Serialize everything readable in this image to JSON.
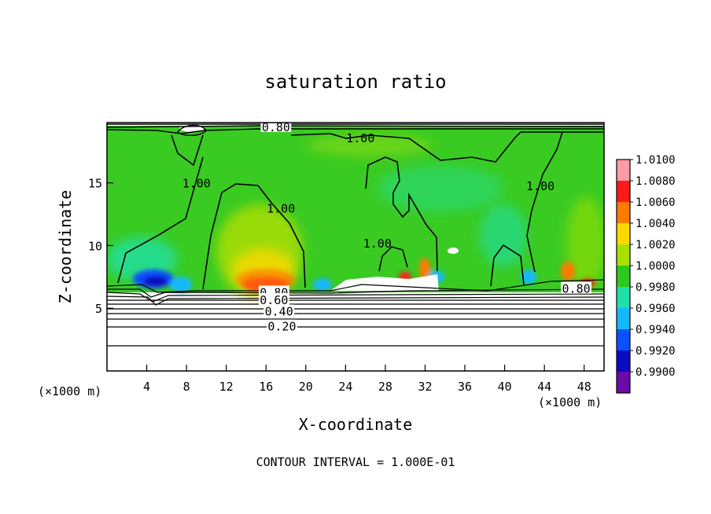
{
  "chart_data": {
    "type": "heatmap",
    "title": "saturation ratio",
    "xlabel": "X-coordinate",
    "ylabel": "Z-coordinate",
    "x_unit": "(×1000 m)",
    "y_unit": "(×1000 m)",
    "xlim": [
      0,
      50
    ],
    "ylim": [
      0,
      19.8
    ],
    "x_ticks": [
      4,
      8,
      12,
      16,
      20,
      24,
      28,
      32,
      36,
      40,
      44,
      48
    ],
    "y_ticks": [
      5,
      10,
      15
    ],
    "footer": "CONTOUR INTERVAL = 1.000E-01",
    "colorbar": {
      "levels": [
        "1.0100",
        "1.0080",
        "1.0060",
        "1.0040",
        "1.0020",
        "1.0000",
        "0.9980",
        "0.9960",
        "0.9940",
        "0.9920",
        "0.9900"
      ],
      "colors": [
        "#ff9aa6",
        "#ff1a1a",
        "#ff7a00",
        "#ffd800",
        "#a8e000",
        "#2ec81e",
        "#1ee0a8",
        "#15b8ff",
        "#0a50ff",
        "#0a0ac0",
        "#6a0aa8"
      ]
    },
    "contour_labels": [
      {
        "text": "0.80",
        "x": 17,
        "y": 19.5
      },
      {
        "text": "1.00",
        "x": 25.5,
        "y": 18.6
      },
      {
        "text": "1.00",
        "x": 9,
        "y": 15.0
      },
      {
        "text": "1.00",
        "x": 17.5,
        "y": 13.0
      },
      {
        "text": "1.00",
        "x": 27.2,
        "y": 10.2
      },
      {
        "text": "1.00",
        "x": 43.6,
        "y": 14.8
      },
      {
        "text": "0.80",
        "x": 47.2,
        "y": 6.6
      },
      {
        "text": "0.80",
        "x": 16.8,
        "y": 6.3
      },
      {
        "text": "0.60",
        "x": 16.8,
        "y": 5.7
      },
      {
        "text": "0.40",
        "x": 17.3,
        "y": 4.8
      },
      {
        "text": "0.20",
        "x": 17.6,
        "y": 3.6
      }
    ]
  }
}
